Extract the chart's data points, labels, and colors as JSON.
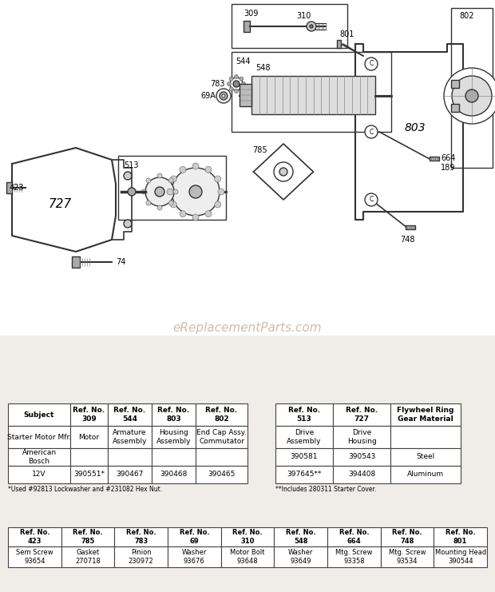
{
  "bg_color": "#f0ede8",
  "watermark": "eReplacementParts.com",
  "table1_headers": [
    [
      "Subject",
      ""
    ],
    [
      "Ref. No.",
      "309"
    ],
    [
      "Ref. No.",
      "544"
    ],
    [
      "Ref. No.",
      "803"
    ],
    [
      "Ref. No.",
      "802"
    ]
  ],
  "table1_rows": [
    [
      "Starter Motor Mfr.",
      "Motor",
      "Armature\nAssembly",
      "Housing\nAssembly",
      "End Cap Assy.\nCommutator"
    ],
    [
      "American\nBosch",
      "",
      "",
      "",
      ""
    ],
    [
      "12V",
      "390551*",
      "390467",
      "390468",
      "390465"
    ]
  ],
  "table1_footnote": "*Used #92813 Lockwasher and #231082 Hex Nut.",
  "table2_headers": [
    [
      "Ref. No.",
      "513"
    ],
    [
      "Ref. No.",
      "727"
    ],
    [
      "Flywheel Ring",
      "Gear Material"
    ]
  ],
  "table2_rows": [
    [
      "Drive\nAssembly",
      "Drive\nHousing",
      ""
    ],
    [
      "390581",
      "390543",
      "Steel"
    ],
    [
      "397645**",
      "394408",
      "Aluminum"
    ]
  ],
  "table2_footnote": "**Includes 280311 Starter Cover.",
  "table3_headers": [
    [
      "Ref. No.",
      "423"
    ],
    [
      "Ref. No.",
      "785"
    ],
    [
      "Ref. No.",
      "783"
    ],
    [
      "Ref. No.",
      "69"
    ],
    [
      "Ref. No.",
      "310"
    ],
    [
      "Ref. No.",
      "548"
    ],
    [
      "Ref. No.",
      "664"
    ],
    [
      "Ref. No.",
      "748"
    ],
    [
      "Ref. No.",
      "801"
    ]
  ],
  "table3_rows": [
    [
      "Sem Screw\n93654",
      "Gasket\n270718",
      "Pinion\n230972",
      "Washer\n93676",
      "Motor Bolt\n93648",
      "Washer\n93649",
      "Mtg. Screw\n93358",
      "Mtg. Screw\n93534",
      "Mounting Head\n390544"
    ]
  ]
}
